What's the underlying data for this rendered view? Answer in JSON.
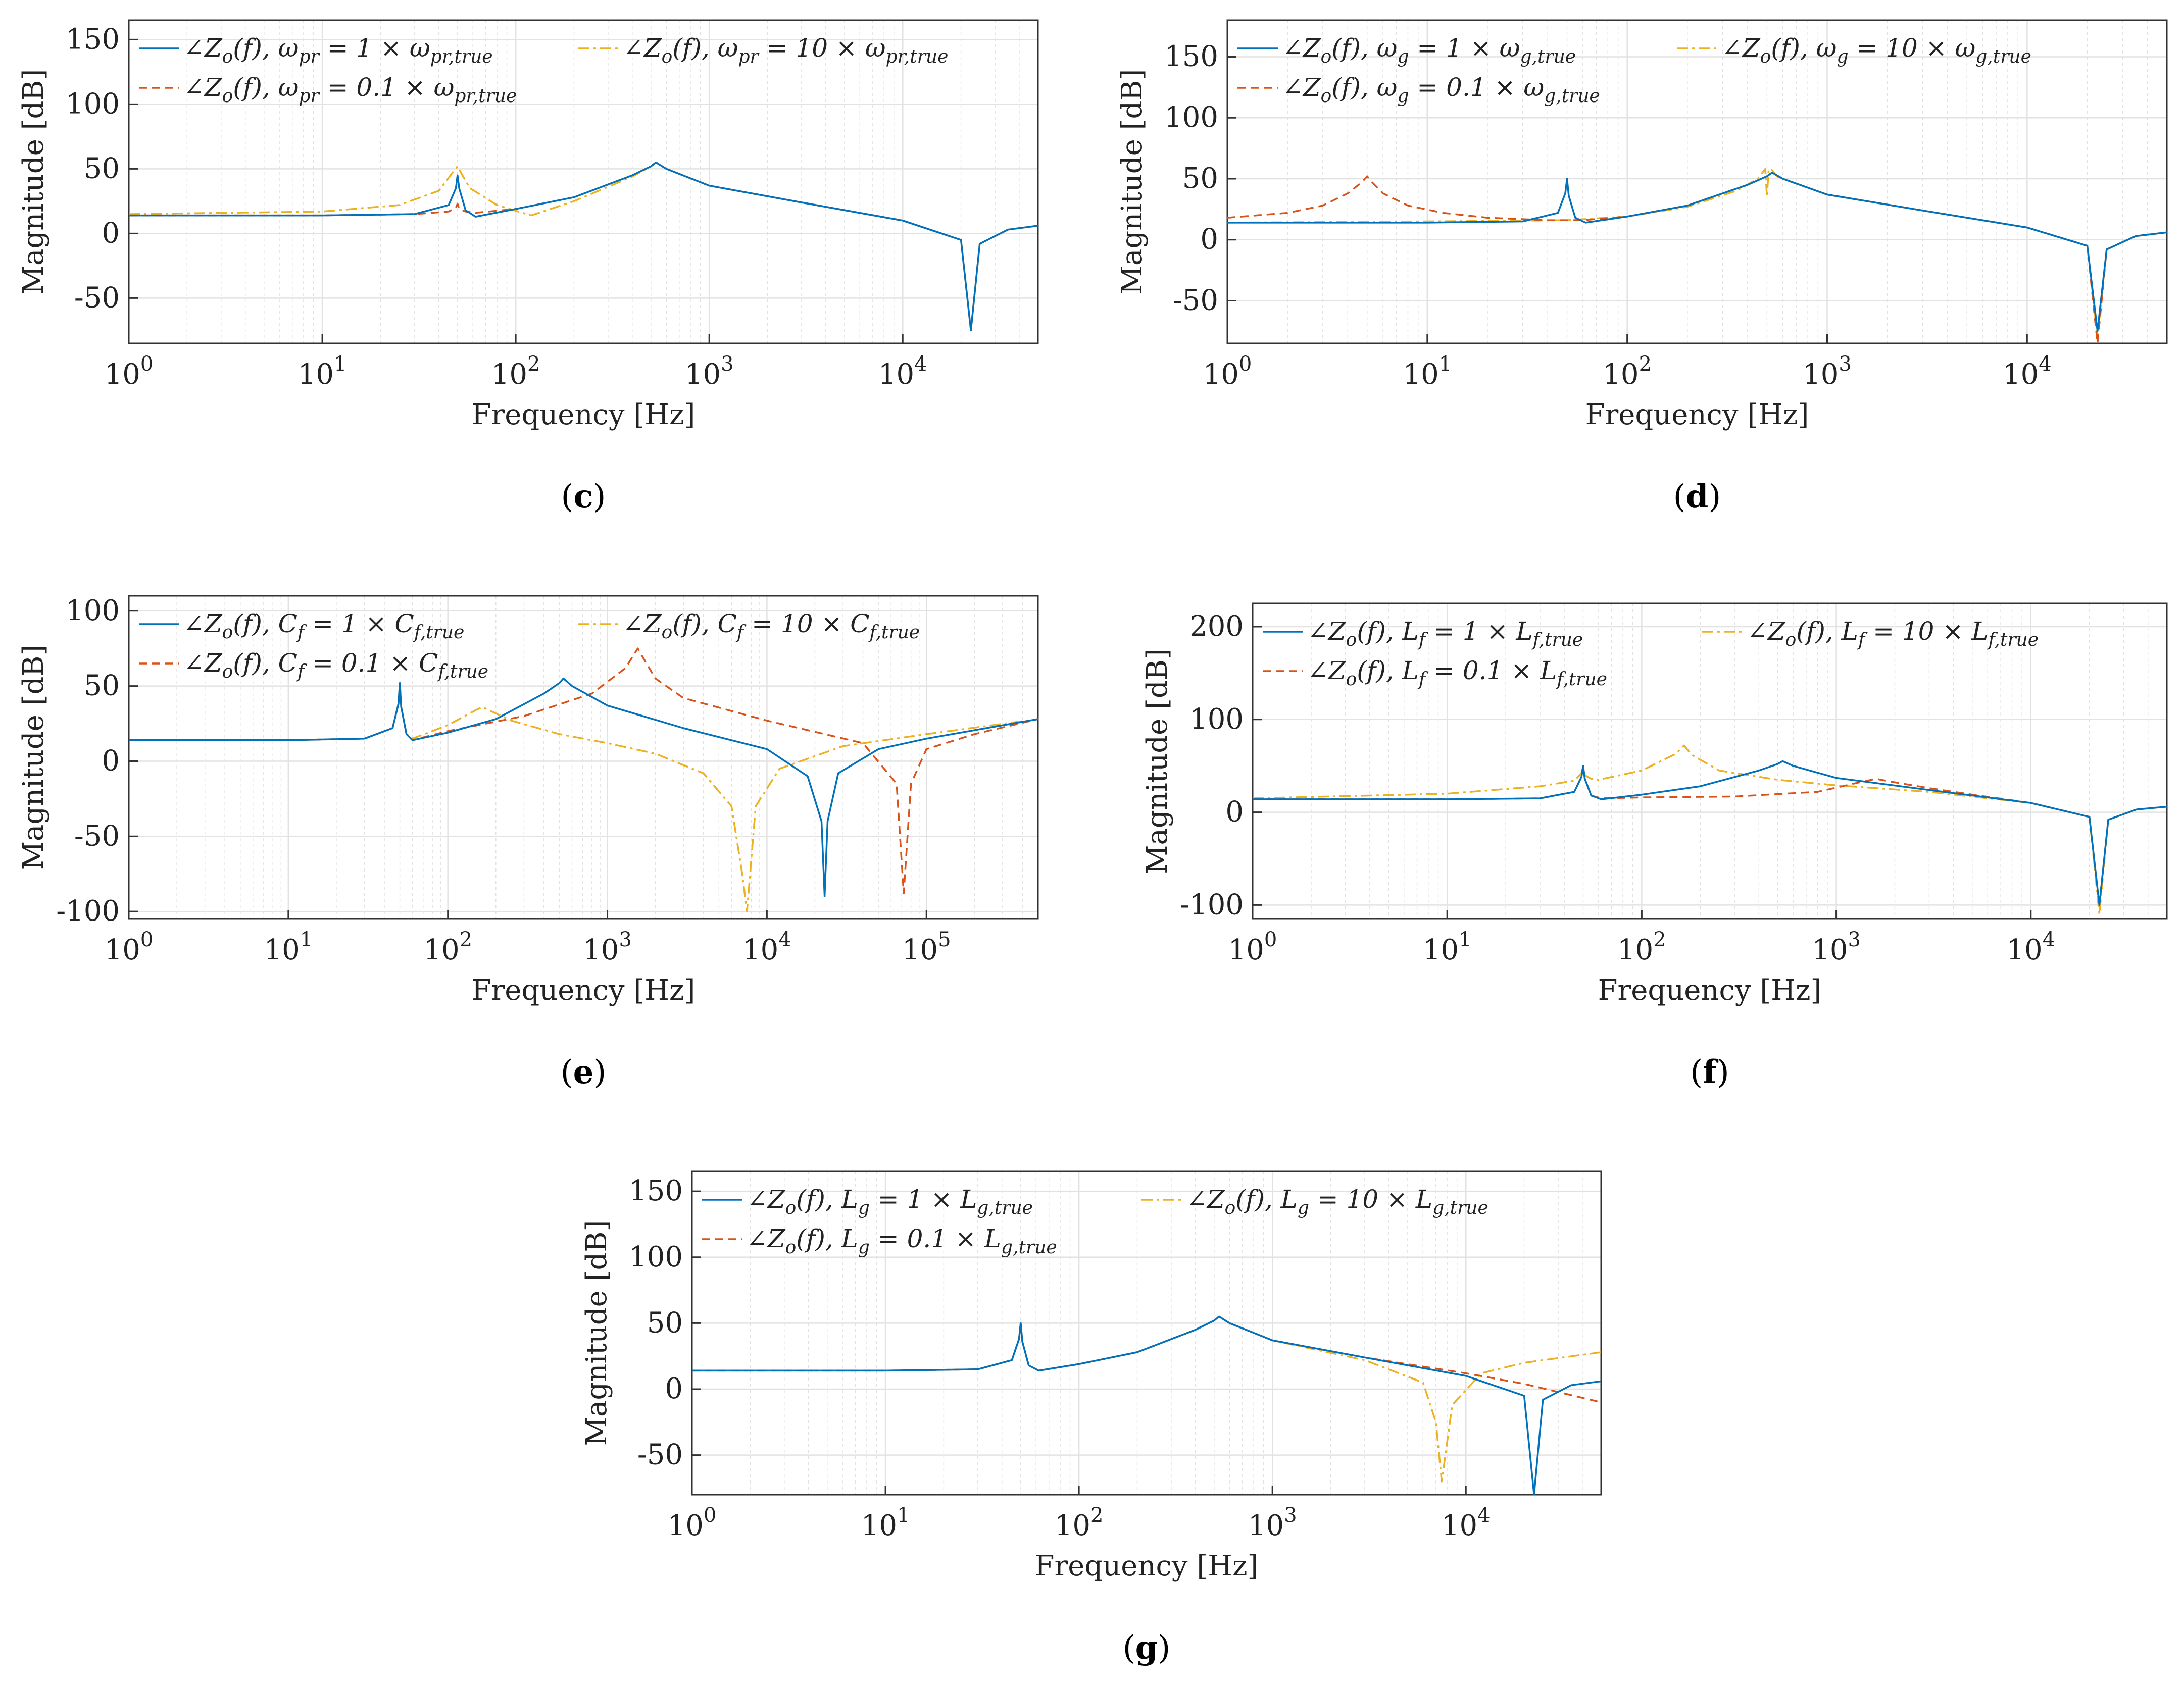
{
  "colors": {
    "c1": "#0072BD",
    "c01": "#D95319",
    "c10": "#EDB120",
    "grid": "#e2e2e2",
    "axis": "#333333"
  },
  "chart_data": [
    {
      "id": "c",
      "panel": "(c)",
      "type": "line",
      "xscale": "log",
      "xlim": [
        1,
        50000
      ],
      "ylim": [
        -85,
        165
      ],
      "yticks": [
        -50,
        0,
        50,
        100,
        150
      ],
      "xlabel": "Frequency [Hz]",
      "ylabel": "Magnitude [dB]",
      "xticks": [
        {
          "base": "10",
          "exp": "0"
        },
        {
          "base": "10",
          "exp": "1"
        },
        {
          "base": "10",
          "exp": "2"
        },
        {
          "base": "10",
          "exp": "3"
        },
        {
          "base": "10",
          "exp": "4"
        }
      ],
      "series": [
        {
          "name": "∠Z_o(f), ω_pr = 1 × ω_pr,true",
          "style": "c1",
          "x": [
            1,
            10,
            30,
            45,
            49,
            50,
            51,
            55,
            62,
            100,
            200,
            400,
            500,
            530,
            600,
            1000,
            3000,
            10000,
            20000,
            22500,
            25000,
            35000,
            50000
          ],
          "y": [
            14,
            14,
            15,
            22,
            35,
            45,
            35,
            18,
            13,
            19,
            28,
            45,
            52,
            55,
            50,
            37,
            24,
            10,
            -5,
            -75,
            -8,
            3,
            6
          ]
        },
        {
          "name": "∠Z_o(f), ω_pr = 0.1 × ω_pr,true",
          "style": "c01",
          "x": [
            1,
            10,
            30,
            45,
            49,
            50,
            51,
            55,
            62,
            100,
            200,
            400,
            500,
            530,
            600,
            1000,
            3000,
            10000,
            20000,
            22500,
            25000,
            35000,
            50000
          ],
          "y": [
            14,
            14,
            15,
            17,
            20,
            23,
            19,
            17,
            16,
            19,
            28,
            45,
            52,
            55,
            50,
            37,
            24,
            10,
            -5,
            -75,
            -8,
            3,
            6
          ]
        },
        {
          "name": "∠Z_o(f), ω_pr = 10 × ω_pr,true",
          "style": "c10",
          "x": [
            1,
            10,
            25,
            40,
            46,
            50,
            53,
            58,
            80,
            120,
            200,
            400,
            500,
            530,
            600,
            1000,
            3000,
            10000,
            20000,
            22500,
            25000,
            35000,
            50000
          ],
          "y": [
            15,
            17,
            22,
            33,
            45,
            52,
            45,
            35,
            22,
            14,
            25,
            44,
            52,
            55,
            50,
            37,
            24,
            10,
            -5,
            -75,
            -8,
            3,
            6
          ]
        }
      ],
      "legend": [
        {
          "style": "c1",
          "text": "∠Z_o(f), ω_pr = 1 × ω_pr,true"
        },
        {
          "style": "c10",
          "text": "∠Z_o(f), ω_pr = 10 × ω_pr,true"
        },
        {
          "style": "c01",
          "text": "∠Z_o(f), ω_pr = 0.1 × ω_pr,true"
        }
      ]
    },
    {
      "id": "d",
      "panel": "(d)",
      "type": "line",
      "xscale": "log",
      "xlim": [
        1,
        50000
      ],
      "ylim": [
        -85,
        180
      ],
      "yticks": [
        -50,
        0,
        50,
        100,
        150
      ],
      "xlabel": "Frequency [Hz]",
      "ylabel": "Magnitude [dB]",
      "xticks": [
        {
          "base": "10",
          "exp": "0"
        },
        {
          "base": "10",
          "exp": "1"
        },
        {
          "base": "10",
          "exp": "2"
        },
        {
          "base": "10",
          "exp": "3"
        },
        {
          "base": "10",
          "exp": "4"
        }
      ],
      "series": [
        {
          "name": "∠Z_o(f), ω_g = 1 × ω_g,true",
          "style": "c1",
          "x": [
            1,
            10,
            30,
            45,
            49,
            50,
            51,
            55,
            62,
            100,
            200,
            400,
            500,
            530,
            600,
            1000,
            3000,
            10000,
            20000,
            22500,
            25000,
            35000,
            50000
          ],
          "y": [
            14,
            14,
            15,
            22,
            38,
            50,
            36,
            18,
            14,
            19,
            28,
            45,
            52,
            55,
            50,
            37,
            24,
            10,
            -5,
            -75,
            -8,
            3,
            6
          ]
        },
        {
          "name": "∠Z_o(f), ω_g = 0.1 × ω_g,true",
          "style": "c01",
          "x": [
            1,
            2,
            3,
            4,
            4.7,
            5,
            5.3,
            6,
            8,
            12,
            20,
            40,
            60,
            100,
            200,
            400,
            500,
            530,
            600,
            1000,
            3000,
            10000,
            20000,
            22500,
            25000,
            35000,
            50000
          ],
          "y": [
            18,
            22,
            28,
            38,
            47,
            52,
            47,
            38,
            28,
            22,
            18,
            16,
            16,
            19,
            28,
            45,
            52,
            55,
            50,
            37,
            24,
            10,
            -5,
            -85,
            -8,
            3,
            6
          ]
        },
        {
          "name": "∠Z_o(f), ω_g = 10 × ω_g,true",
          "style": "c10",
          "x": [
            1,
            10,
            50,
            100,
            200,
            350,
            450,
            490,
            500,
            510,
            530,
            560,
            600,
            1000,
            3000,
            10000,
            20000,
            22500,
            25000,
            35000,
            50000
          ],
          "y": [
            14,
            15,
            16,
            19,
            27,
            40,
            50,
            58,
            35,
            58,
            57,
            52,
            50,
            37,
            24,
            10,
            -5,
            -80,
            -8,
            3,
            6
          ]
        }
      ],
      "legend": [
        {
          "style": "c1",
          "text": "∠Z_o(f), ω_g = 1 × ω_g,true"
        },
        {
          "style": "c10",
          "text": "∠Z_o(f), ω_g = 10 × ω_g,true"
        },
        {
          "style": "c01",
          "text": "∠Z_o(f), ω_g = 0.1 × ω_g,true"
        }
      ]
    },
    {
      "id": "e",
      "panel": "(e)",
      "type": "line",
      "xscale": "log",
      "xlim": [
        1,
        500000
      ],
      "ylim": [
        -105,
        110
      ],
      "yticks": [
        -100,
        -50,
        0,
        50,
        100
      ],
      "xlabel": "Frequency [Hz]",
      "ylabel": "Magnitude [dB]",
      "xticks": [
        {
          "base": "10",
          "exp": "0"
        },
        {
          "base": "10",
          "exp": "1"
        },
        {
          "base": "10",
          "exp": "2"
        },
        {
          "base": "10",
          "exp": "3"
        },
        {
          "base": "10",
          "exp": "4"
        },
        {
          "base": "10",
          "exp": "5"
        }
      ],
      "series": [
        {
          "name": "∠Z_o(f), C_f = 1 × C_f,true",
          "style": "c1",
          "x": [
            1,
            10,
            30,
            45,
            49,
            50,
            51,
            55,
            60,
            100,
            200,
            400,
            500,
            530,
            600,
            1000,
            3000,
            10000,
            18000,
            22000,
            23000,
            24000,
            28000,
            50000,
            100000,
            500000
          ],
          "y": [
            14,
            14,
            15,
            22,
            38,
            52,
            36,
            18,
            14,
            19,
            28,
            45,
            52,
            55,
            50,
            37,
            22,
            8,
            -10,
            -40,
            -90,
            -40,
            -8,
            8,
            15,
            28
          ]
        },
        {
          "name": "∠Z_o(f), C_f = 0.1 × C_f,true",
          "style": "c01",
          "x": [
            1,
            10,
            30,
            45,
            49,
            50,
            51,
            55,
            60,
            100,
            300,
            800,
            1300,
            1550,
            1650,
            2000,
            3000,
            10000,
            40000,
            65000,
            72000,
            80000,
            100000,
            200000,
            500000
          ],
          "y": [
            14,
            14,
            15,
            22,
            38,
            52,
            36,
            18,
            14,
            20,
            30,
            45,
            62,
            75,
            70,
            55,
            42,
            27,
            12,
            -15,
            -88,
            -15,
            8,
            18,
            28
          ]
        },
        {
          "name": "∠Z_o(f), C_f = 10 × C_f,true",
          "style": "c10",
          "x": [
            1,
            10,
            30,
            45,
            49,
            50,
            51,
            55,
            60,
            100,
            150,
            165,
            180,
            250,
            500,
            1000,
            2000,
            4000,
            6000,
            7000,
            7500,
            8500,
            12000,
            30000,
            100000,
            500000
          ],
          "y": [
            14,
            14,
            15,
            22,
            38,
            52,
            36,
            18,
            15,
            24,
            34,
            36,
            34,
            27,
            18,
            12,
            5,
            -8,
            -30,
            -75,
            -100,
            -30,
            -5,
            10,
            18,
            28
          ]
        }
      ],
      "legend": [
        {
          "style": "c1",
          "text": "∠Z_o(f), C_f = 1 × C_f,true"
        },
        {
          "style": "c10",
          "text": "∠Z_o(f), C_f = 10 × C_f,true"
        },
        {
          "style": "c01",
          "text": "∠Z_o(f), C_f = 0.1 × C_f,true"
        }
      ]
    },
    {
      "id": "f",
      "panel": "(f)",
      "type": "line",
      "xscale": "log",
      "xlim": [
        1,
        50000
      ],
      "ylim": [
        -115,
        225
      ],
      "yticks": [
        -100,
        0,
        100,
        200
      ],
      "xlabel": "Frequency [Hz]",
      "ylabel": "Magnitude [dB]",
      "xticks": [
        {
          "base": "10",
          "exp": "0"
        },
        {
          "base": "10",
          "exp": "1"
        },
        {
          "base": "10",
          "exp": "2"
        },
        {
          "base": "10",
          "exp": "3"
        },
        {
          "base": "10",
          "exp": "4"
        }
      ],
      "series": [
        {
          "name": "∠Z_o(f), L_f = 1 × L_f,true",
          "style": "c1",
          "x": [
            1,
            10,
            30,
            45,
            49,
            50,
            51,
            55,
            62,
            100,
            200,
            400,
            500,
            530,
            600,
            1000,
            3000,
            10000,
            20000,
            22500,
            25000,
            35000,
            50000
          ],
          "y": [
            14,
            14,
            15,
            22,
            38,
            50,
            36,
            18,
            14,
            19,
            28,
            45,
            52,
            55,
            50,
            37,
            24,
            10,
            -5,
            -100,
            -8,
            3,
            6
          ]
        },
        {
          "name": "∠Z_o(f), L_f = 0.1 × L_f,true",
          "style": "c01",
          "x": [
            1,
            10,
            30,
            45,
            49,
            50,
            51,
            55,
            62,
            100,
            300,
            800,
            1300,
            1600,
            1900,
            3000,
            5000,
            10000,
            20000,
            22500,
            25000,
            35000,
            50000
          ],
          "y": [
            14,
            14,
            15,
            22,
            38,
            50,
            36,
            18,
            15,
            16,
            17,
            22,
            32,
            36,
            33,
            26,
            19,
            10,
            -5,
            -100,
            -8,
            3,
            6
          ]
        },
        {
          "name": "∠Z_o(f), L_f = 10 × L_f,true",
          "style": "c10",
          "x": [
            1,
            10,
            30,
            45,
            49,
            50,
            51,
            55,
            60,
            100,
            150,
            165,
            180,
            250,
            500,
            1000,
            3000,
            10000,
            20000,
            22500,
            25000,
            35000,
            50000
          ],
          "y": [
            15,
            20,
            28,
            34,
            42,
            50,
            40,
            36,
            35,
            45,
            63,
            72,
            62,
            45,
            35,
            29,
            22,
            10,
            -5,
            -110,
            -8,
            3,
            6
          ]
        }
      ],
      "legend": [
        {
          "style": "c1",
          "text": "∠Z_o(f), L_f = 1 × L_f,true"
        },
        {
          "style": "c10",
          "text": "∠Z_o(f), L_f = 10 × L_f,true"
        },
        {
          "style": "c01",
          "text": "∠Z_o(f), L_f = 0.1 × L_f,true"
        }
      ]
    },
    {
      "id": "g",
      "panel": "(g)",
      "type": "line",
      "xscale": "log",
      "xlim": [
        1,
        50000
      ],
      "ylim": [
        -80,
        165
      ],
      "yticks": [
        -50,
        0,
        50,
        100,
        150
      ],
      "xlabel": "Frequency [Hz]",
      "ylabel": "Magnitude [dB]",
      "xticks": [
        {
          "base": "10",
          "exp": "0"
        },
        {
          "base": "10",
          "exp": "1"
        },
        {
          "base": "10",
          "exp": "2"
        },
        {
          "base": "10",
          "exp": "3"
        },
        {
          "base": "10",
          "exp": "4"
        }
      ],
      "series": [
        {
          "name": "∠Z_o(f), L_g = 1 × L_g,true",
          "style": "c1",
          "x": [
            1,
            10,
            30,
            45,
            49,
            50,
            51,
            55,
            62,
            100,
            200,
            400,
            500,
            530,
            600,
            1000,
            3000,
            10000,
            20000,
            22500,
            25000,
            35000,
            50000
          ],
          "y": [
            14,
            14,
            15,
            22,
            38,
            50,
            36,
            18,
            14,
            19,
            28,
            45,
            52,
            55,
            50,
            37,
            24,
            10,
            -5,
            -80,
            -8,
            3,
            6
          ]
        },
        {
          "name": "∠Z_o(f), L_g = 0.1 × L_g,true",
          "style": "c01",
          "x": [
            1,
            10,
            30,
            45,
            49,
            50,
            51,
            55,
            62,
            100,
            200,
            400,
            500,
            530,
            600,
            1000,
            3000,
            10000,
            20000,
            50000
          ],
          "y": [
            14,
            14,
            15,
            22,
            38,
            50,
            36,
            18,
            14,
            19,
            28,
            45,
            52,
            55,
            50,
            37,
            24,
            12,
            4,
            -10
          ]
        },
        {
          "name": "∠Z_o(f), L_g = 10 × L_g,true",
          "style": "c10",
          "x": [
            1,
            10,
            30,
            45,
            49,
            50,
            51,
            55,
            62,
            100,
            200,
            400,
            500,
            530,
            600,
            1000,
            3000,
            6000,
            7000,
            7500,
            8500,
            12000,
            20000,
            50000
          ],
          "y": [
            14,
            14,
            15,
            22,
            38,
            50,
            36,
            18,
            14,
            19,
            28,
            45,
            52,
            55,
            50,
            37,
            22,
            5,
            -25,
            -70,
            -12,
            12,
            20,
            28
          ]
        }
      ],
      "legend": [
        {
          "style": "c1",
          "text": "∠Z_o(f), L_g = 1 × L_g,true"
        },
        {
          "style": "c10",
          "text": "∠Z_o(f), L_g = 10 × L_g,true"
        },
        {
          "style": "c01",
          "text": "∠Z_o(f), L_g = 0.1 × L_g,true"
        }
      ]
    }
  ]
}
